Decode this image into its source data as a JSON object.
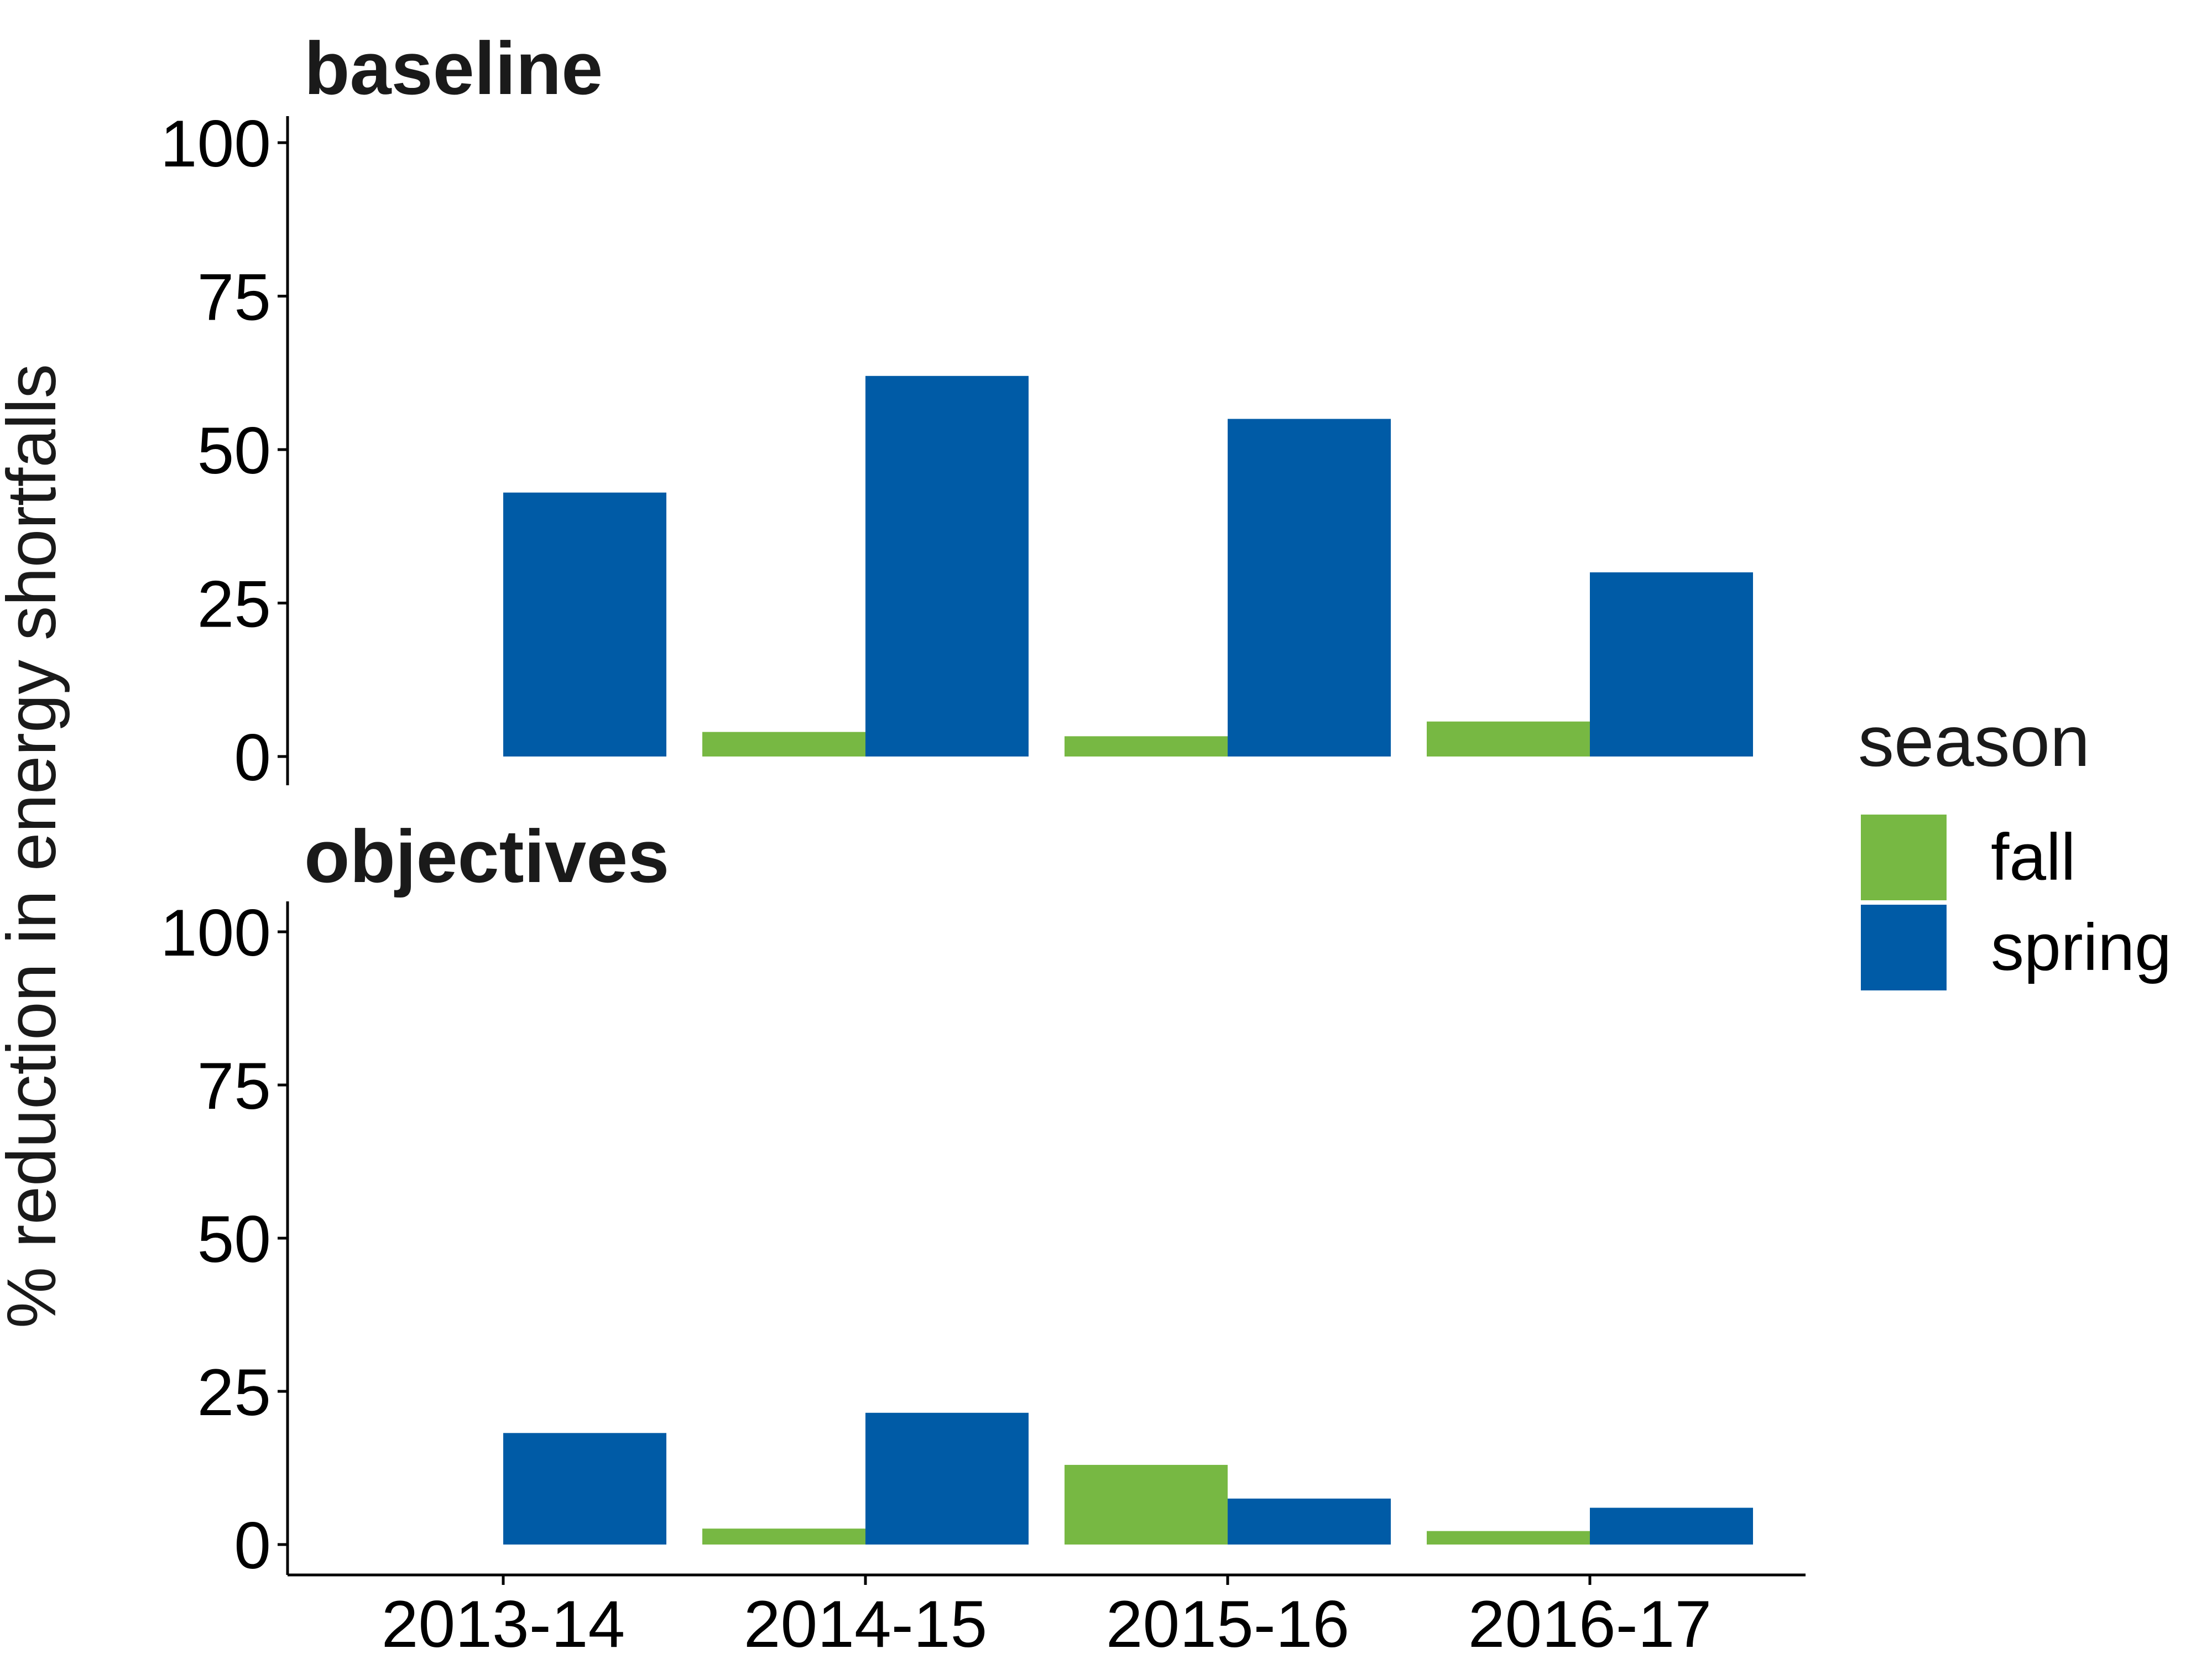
{
  "chart_data": {
    "type": "bar",
    "ylabel": "% reduction in energy shortfalls",
    "categories": [
      "2013-14",
      "2014-15",
      "2015-16",
      "2016-17"
    ],
    "ylim": [
      0,
      100
    ],
    "yticks": [
      0,
      25,
      50,
      75,
      100
    ],
    "grid": false,
    "legend": {
      "title": "season",
      "position": "right",
      "entries": [
        {
          "name": "fall",
          "color": "#77b843"
        },
        {
          "name": "spring",
          "color": "#005ba6"
        }
      ]
    },
    "panels": [
      {
        "title": "baseline",
        "series": [
          {
            "name": "fall",
            "values": [
              0,
              4,
              3.3,
              5.7
            ]
          },
          {
            "name": "spring",
            "values": [
              43,
              62,
              55,
              30
            ]
          }
        ]
      },
      {
        "title": "objectives",
        "series": [
          {
            "name": "fall",
            "values": [
              0,
              2.6,
              13,
              2.2
            ]
          },
          {
            "name": "spring",
            "values": [
              18.2,
              21.5,
              7.5,
              6
            ]
          }
        ]
      }
    ]
  }
}
